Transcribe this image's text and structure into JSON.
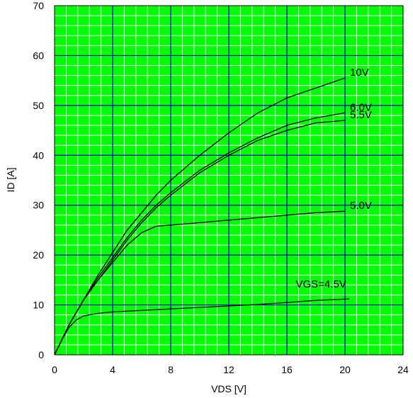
{
  "chart_data": {
    "type": "line",
    "xlabel": "VDS [V]",
    "ylabel": "ID [A]",
    "xlim": [
      0,
      24
    ],
    "ylim": [
      0,
      70
    ],
    "x_ticks": [
      "0",
      "4",
      "8",
      "12",
      "16",
      "20",
      "24"
    ],
    "y_ticks": [
      "0",
      "10",
      "20",
      "30",
      "40",
      "50",
      "60",
      "70"
    ],
    "grid": true,
    "colors": {
      "background": "#00ff00",
      "minor_grid": "#ffffff",
      "major_grid": "#0000cc",
      "line": "#000000",
      "axis": "#000000"
    },
    "series": [
      {
        "name": "10V",
        "x": [
          0,
          1,
          2,
          3,
          4,
          5,
          6,
          7,
          8,
          10,
          12,
          14,
          16,
          18,
          20
        ],
        "y": [
          0,
          6,
          11,
          16,
          20.5,
          25,
          28.5,
          32,
          35,
          40,
          44.5,
          48.5,
          51.5,
          53.5,
          55.5
        ]
      },
      {
        "name": "6.0V",
        "x": [
          0,
          1,
          2,
          3,
          4,
          5,
          6,
          7,
          8,
          10,
          12,
          14,
          16,
          18,
          20
        ],
        "y": [
          0,
          6,
          11,
          15.5,
          19.5,
          23.5,
          27,
          30,
          32.5,
          37,
          40.5,
          43.5,
          46,
          47.5,
          48.5
        ]
      },
      {
        "name": "5.5V",
        "x": [
          0,
          1,
          2,
          3,
          4,
          5,
          6,
          7,
          8,
          10,
          12,
          14,
          16,
          18,
          20
        ],
        "y": [
          0,
          6,
          11,
          15,
          19,
          23,
          26.5,
          29.5,
          32,
          36.5,
          40,
          43,
          45,
          46.5,
          47
        ]
      },
      {
        "name": "5.0V",
        "x": [
          0,
          1,
          2,
          3,
          4,
          5,
          6,
          7,
          8,
          10,
          12,
          14,
          16,
          18,
          20
        ],
        "y": [
          0,
          6,
          11,
          15,
          18.5,
          22,
          24.5,
          25.8,
          26,
          26.5,
          27,
          27.5,
          28,
          28.5,
          28.8
        ]
      },
      {
        "name": "VGS=4.5V",
        "x": [
          0,
          0.5,
          1,
          1.5,
          2,
          3,
          4,
          6,
          8,
          10,
          12,
          14,
          16,
          18,
          20.3
        ],
        "y": [
          0,
          3,
          5.5,
          7,
          7.8,
          8.3,
          8.6,
          8.9,
          9.2,
          9.5,
          9.8,
          10.1,
          10.5,
          10.9,
          11.2
        ]
      }
    ]
  }
}
